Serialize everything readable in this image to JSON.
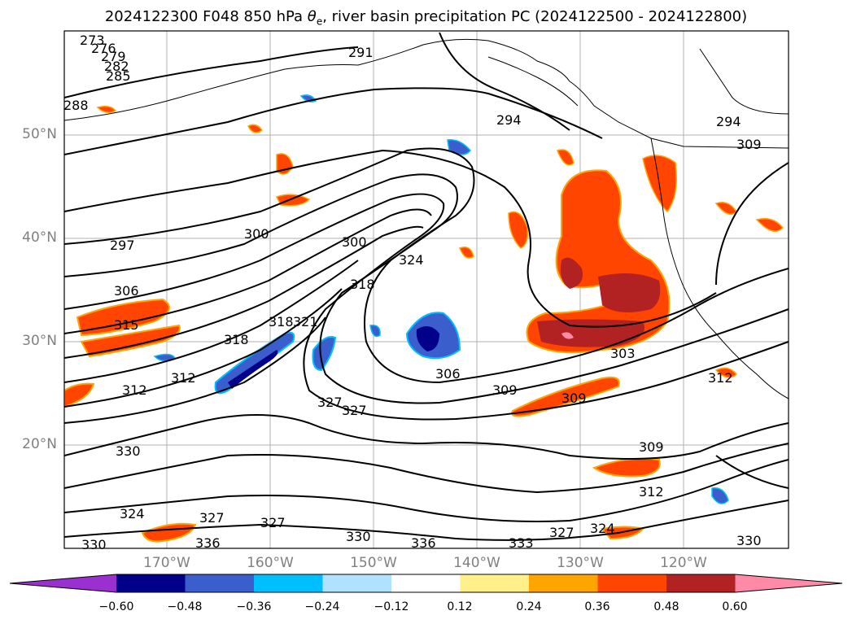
{
  "title": {
    "prefix": "2024122300 F048 850 hPa ",
    "theta": "θ",
    "sub": "e",
    "suffix": ", river basin precipitation PC (2024122500 - 2024122800)"
  },
  "map": {
    "latitude_labels": [
      "50°N",
      "40°N",
      "30°N",
      "20°N"
    ],
    "longitude_labels": [
      "170°W",
      "160°W",
      "150°W",
      "140°W",
      "130°W",
      "120°W"
    ],
    "contour_labels": [
      "273",
      "276",
      "279",
      "282",
      "285",
      "288",
      "291",
      "294",
      "294",
      "297",
      "300",
      "300",
      "306",
      "315",
      "318",
      "318",
      "321",
      "324",
      "312",
      "327",
      "327",
      "306",
      "309",
      "303",
      "309",
      "309",
      "312",
      "312",
      "330",
      "324",
      "327",
      "327",
      "330",
      "336",
      "333",
      "327",
      "324",
      "330",
      "330",
      "336",
      "312",
      "318",
      "309"
    ]
  },
  "colorbar": {
    "ticks": [
      "−0.60",
      "−0.48",
      "−0.36",
      "−0.24",
      "−0.12",
      "0.12",
      "0.24",
      "0.36",
      "0.48",
      "0.60"
    ],
    "colors": [
      "#9b30d0",
      "#00008b",
      "#3a5fcd",
      "#00bfff",
      "#b0e2ff",
      "#ffffff",
      "#fff08a",
      "#ffa500",
      "#ff4500",
      "#b22222",
      "#ff8aa8"
    ]
  }
}
